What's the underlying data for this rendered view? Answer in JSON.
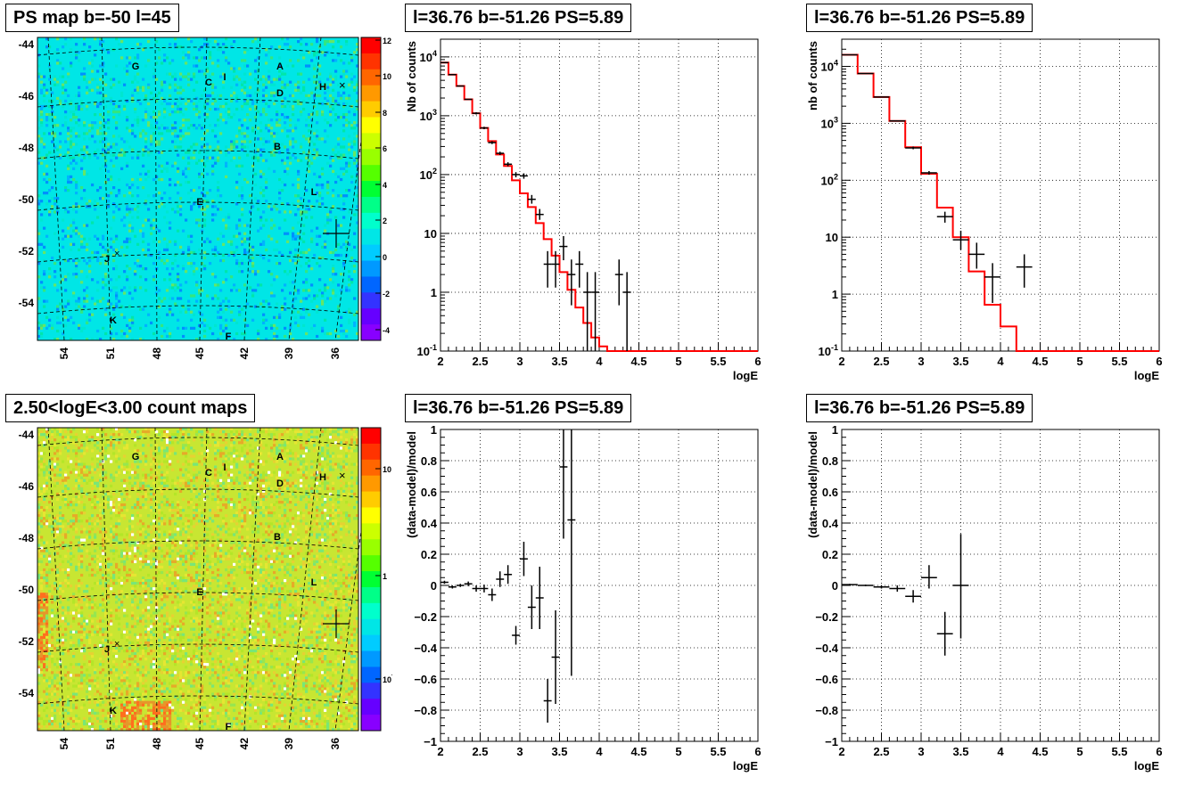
{
  "panels": {
    "map_ps": {
      "title": "PS map b=-50 l=45",
      "colorbar_ticks": [
        "12",
        "10",
        "8",
        "6",
        "4",
        "2",
        "0",
        "-2",
        "-4"
      ]
    },
    "map_counts": {
      "title": "2.50<logE<3.00 count maps",
      "colorbar_ticks": [
        "10",
        "1",
        "10-1"
      ]
    },
    "spec1": {
      "title": "l=36.76 b=-51.26 PS=5.89",
      "ylabel": "Nb of counts",
      "xlabel": "logE"
    },
    "spec2": {
      "title": "l=36.76 b=-51.26 PS=5.89",
      "ylabel": "nb of counts",
      "xlabel": "logE"
    },
    "res1": {
      "title": "l=36.76 b=-51.26 PS=5.89",
      "ylabel": "(data-model)/model",
      "xlabel": "logE"
    },
    "res2": {
      "title": "l=36.76 b=-51.26 PS=5.89",
      "ylabel": "(data-model)/model",
      "xlabel": "logE"
    }
  },
  "map_axes": {
    "lat_ticks": [
      "-44",
      "-46",
      "-48",
      "-50",
      "-52",
      "-54"
    ],
    "lon_ticks": [
      "54",
      "51",
      "48",
      "45",
      "42",
      "39",
      "36"
    ]
  },
  "map_labels": [
    "G",
    "C",
    "I",
    "A",
    "D",
    "H",
    "B",
    "L",
    "E",
    "J",
    "K",
    "F"
  ],
  "colors": {
    "model_line": "#ff0000",
    "data_points": "#000000",
    "grid": "#000000",
    "ps_map_background": "#00e6e6",
    "counts_map_background": "#c8e632"
  },
  "chart_data": [
    {
      "id": "spec1",
      "type": "line",
      "title": "l=36.76 b=-51.26 PS=5.89",
      "xlabel": "logE",
      "ylabel": "Nb of counts",
      "xlim": [
        2,
        6
      ],
      "ylim": [
        0.1,
        20000
      ],
      "yscale": "log",
      "grid": true,
      "x_ticks": [
        "2",
        "2.5",
        "3",
        "3.5",
        "4",
        "4.5",
        "5",
        "5.5",
        "6"
      ],
      "y_ticks": [
        {
          "v": 0.1,
          "t": "10-1"
        },
        {
          "v": 1,
          "t": "1"
        },
        {
          "v": 10,
          "t": "10"
        },
        {
          "v": 100,
          "t": "10^2"
        },
        {
          "v": 1000,
          "t": "10^3"
        },
        {
          "v": 10000,
          "t": "10^4"
        }
      ],
      "model_step": {
        "edges": [
          2.0,
          2.1,
          2.2,
          2.3,
          2.4,
          2.5,
          2.6,
          2.7,
          2.8,
          2.9,
          3.0,
          3.1,
          3.2,
          3.3,
          3.4,
          3.5,
          3.6,
          3.7,
          3.8,
          3.9,
          4.0,
          4.1,
          6.0
        ],
        "values": [
          8000,
          5000,
          3200,
          1900,
          1100,
          620,
          370,
          220,
          140,
          80,
          48,
          28,
          15,
          8,
          4.2,
          2.2,
          1.1,
          0.55,
          0.3,
          0.17,
          0.12,
          0.1
        ]
      },
      "points": [
        {
          "x": 2.05,
          "y": 8000,
          "ylo": 8000,
          "yhi": 8000
        },
        {
          "x": 2.15,
          "y": 5000,
          "ylo": 5000,
          "yhi": 5000
        },
        {
          "x": 2.25,
          "y": 3200,
          "ylo": 3200,
          "yhi": 3200
        },
        {
          "x": 2.35,
          "y": 1900,
          "ylo": 1900,
          "yhi": 1900
        },
        {
          "x": 2.45,
          "y": 1100,
          "ylo": 1050,
          "yhi": 1150
        },
        {
          "x": 2.55,
          "y": 620,
          "ylo": 590,
          "yhi": 650
        },
        {
          "x": 2.65,
          "y": 350,
          "ylo": 330,
          "yhi": 370
        },
        {
          "x": 2.75,
          "y": 230,
          "ylo": 215,
          "yhi": 245
        },
        {
          "x": 2.85,
          "y": 150,
          "ylo": 138,
          "yhi": 162
        },
        {
          "x": 2.95,
          "y": 100,
          "ylo": 90,
          "yhi": 110
        },
        {
          "x": 3.05,
          "y": 95,
          "ylo": 85,
          "yhi": 105
        },
        {
          "x": 3.15,
          "y": 38,
          "ylo": 32,
          "yhi": 45
        },
        {
          "x": 3.25,
          "y": 21,
          "ylo": 17,
          "yhi": 26
        },
        {
          "x": 3.35,
          "y": 3,
          "ylo": 1.2,
          "yhi": 5
        },
        {
          "x": 3.45,
          "y": 3,
          "ylo": 1.2,
          "yhi": 5
        },
        {
          "x": 3.55,
          "y": 6,
          "ylo": 3.5,
          "yhi": 9
        },
        {
          "x": 3.65,
          "y": 2,
          "ylo": 0.6,
          "yhi": 3.6
        },
        {
          "x": 3.75,
          "y": 3,
          "ylo": 1.2,
          "yhi": 5
        },
        {
          "x": 3.85,
          "y": 1,
          "ylo": 0.1,
          "yhi": 2.2
        },
        {
          "x": 3.95,
          "y": 1,
          "ylo": 0.1,
          "yhi": 2.2
        },
        {
          "x": 4.25,
          "y": 2,
          "ylo": 0.6,
          "yhi": 3.6
        },
        {
          "x": 4.35,
          "y": 1,
          "ylo": 0.1,
          "yhi": 2.2
        }
      ],
      "point_halfwidth": 0.05
    },
    {
      "id": "spec2",
      "type": "line",
      "title": "l=36.76 b=-51.26 PS=5.89",
      "xlabel": "logE",
      "ylabel": "nb of counts",
      "xlim": [
        2,
        6
      ],
      "ylim": [
        0.1,
        30000
      ],
      "yscale": "log",
      "grid": true,
      "x_ticks": [
        "2",
        "2.5",
        "3",
        "3.5",
        "4",
        "4.5",
        "5",
        "5.5",
        "6"
      ],
      "y_ticks": [
        {
          "v": 0.1,
          "t": "10-1"
        },
        {
          "v": 1,
          "t": "1"
        },
        {
          "v": 10,
          "t": "10"
        },
        {
          "v": 100,
          "t": "10^2"
        },
        {
          "v": 1000,
          "t": "10^3"
        },
        {
          "v": 10000,
          "t": "10^4"
        }
      ],
      "model_step": {
        "edges": [
          2.0,
          2.2,
          2.4,
          2.6,
          2.8,
          3.0,
          3.2,
          3.4,
          3.6,
          3.8,
          4.0,
          4.2,
          6.0
        ],
        "values": [
          16000,
          7500,
          2900,
          1100,
          380,
          130,
          33,
          10,
          2.5,
          0.65,
          0.27,
          0.1
        ]
      },
      "points": [
        {
          "x": 2.1,
          "y": 16000,
          "ylo": 16000,
          "yhi": 16000
        },
        {
          "x": 2.3,
          "y": 7500,
          "ylo": 7500,
          "yhi": 7500
        },
        {
          "x": 2.5,
          "y": 2900,
          "ylo": 2850,
          "yhi": 2950
        },
        {
          "x": 2.7,
          "y": 1100,
          "ylo": 1070,
          "yhi": 1130
        },
        {
          "x": 2.9,
          "y": 370,
          "ylo": 350,
          "yhi": 390
        },
        {
          "x": 3.1,
          "y": 135,
          "ylo": 125,
          "yhi": 145
        },
        {
          "x": 3.3,
          "y": 23,
          "ylo": 18,
          "yhi": 28
        },
        {
          "x": 3.5,
          "y": 9,
          "ylo": 6,
          "yhi": 13
        },
        {
          "x": 3.7,
          "y": 5,
          "ylo": 2.8,
          "yhi": 8
        },
        {
          "x": 3.9,
          "y": 2,
          "ylo": 0.7,
          "yhi": 3.5
        },
        {
          "x": 4.3,
          "y": 3,
          "ylo": 1.3,
          "yhi": 5
        }
      ],
      "point_halfwidth": 0.1
    },
    {
      "id": "res1",
      "type": "scatter",
      "title": "l=36.76 b=-51.26 PS=5.89",
      "xlabel": "logE",
      "ylabel": "(data-model)/model",
      "xlim": [
        2,
        6
      ],
      "ylim": [
        -1,
        1
      ],
      "grid": true,
      "x_ticks": [
        "2",
        "2.5",
        "3",
        "3.5",
        "4",
        "4.5",
        "5",
        "5.5",
        "6"
      ],
      "y_ticks": [
        {
          "v": -1,
          "t": "−1"
        },
        {
          "v": -0.8,
          "t": "−0.8"
        },
        {
          "v": -0.6,
          "t": "−0.6"
        },
        {
          "v": -0.4,
          "t": "−0.4"
        },
        {
          "v": -0.2,
          "t": "−0.2"
        },
        {
          "v": 0,
          "t": "0"
        },
        {
          "v": 0.2,
          "t": "0.2"
        },
        {
          "v": 0.4,
          "t": "0.4"
        },
        {
          "v": 0.6,
          "t": "0.6"
        },
        {
          "v": 0.8,
          "t": "0.8"
        },
        {
          "v": 1,
          "t": "1"
        }
      ],
      "points": [
        {
          "x": 2.05,
          "y": 0.02,
          "ylo": 0.01,
          "yhi": 0.03
        },
        {
          "x": 2.15,
          "y": -0.01,
          "ylo": -0.02,
          "yhi": 0.0
        },
        {
          "x": 2.25,
          "y": 0.0,
          "ylo": -0.01,
          "yhi": 0.01
        },
        {
          "x": 2.35,
          "y": 0.01,
          "ylo": -0.005,
          "yhi": 0.025
        },
        {
          "x": 2.45,
          "y": -0.02,
          "ylo": -0.04,
          "yhi": 0.0
        },
        {
          "x": 2.55,
          "y": -0.02,
          "ylo": -0.045,
          "yhi": 0.005
        },
        {
          "x": 2.65,
          "y": -0.06,
          "ylo": -0.1,
          "yhi": -0.02
        },
        {
          "x": 2.75,
          "y": 0.04,
          "ylo": -0.01,
          "yhi": 0.09
        },
        {
          "x": 2.85,
          "y": 0.07,
          "ylo": 0.01,
          "yhi": 0.13
        },
        {
          "x": 2.95,
          "y": -0.32,
          "ylo": -0.38,
          "yhi": -0.26
        },
        {
          "x": 3.05,
          "y": 0.17,
          "ylo": 0.06,
          "yhi": 0.28
        },
        {
          "x": 3.15,
          "y": -0.14,
          "ylo": -0.28,
          "yhi": 0.0
        },
        {
          "x": 3.25,
          "y": -0.08,
          "ylo": -0.28,
          "yhi": 0.12
        },
        {
          "x": 3.35,
          "y": -0.74,
          "ylo": -0.88,
          "yhi": -0.6
        },
        {
          "x": 3.45,
          "y": -0.46,
          "ylo": -0.76,
          "yhi": -0.16
        },
        {
          "x": 3.55,
          "y": 0.76,
          "ylo": 0.3,
          "yhi": 1.0
        },
        {
          "x": 3.65,
          "y": 0.42,
          "ylo": -0.58,
          "yhi": 1.0
        }
      ],
      "point_halfwidth": 0.05
    },
    {
      "id": "res2",
      "type": "scatter",
      "title": "l=36.76 b=-51.26 PS=5.89",
      "xlabel": "logE",
      "ylabel": "(data-model)/model",
      "xlim": [
        2,
        6
      ],
      "ylim": [
        -1,
        1
      ],
      "grid": true,
      "x_ticks": [
        "2",
        "2.5",
        "3",
        "3.5",
        "4",
        "4.5",
        "5",
        "5.5",
        "6"
      ],
      "y_ticks": [
        {
          "v": -1,
          "t": "−1"
        },
        {
          "v": -0.8,
          "t": "−0.8"
        },
        {
          "v": -0.6,
          "t": "−0.6"
        },
        {
          "v": -0.4,
          "t": "−0.4"
        },
        {
          "v": -0.2,
          "t": "−0.2"
        },
        {
          "v": 0,
          "t": "0"
        },
        {
          "v": 0.2,
          "t": "0.2"
        },
        {
          "v": 0.4,
          "t": "0.4"
        },
        {
          "v": 0.6,
          "t": "0.6"
        },
        {
          "v": 0.8,
          "t": "0.8"
        },
        {
          "v": 1,
          "t": "1"
        }
      ],
      "points": [
        {
          "x": 2.1,
          "y": 0.005,
          "ylo": 0.0,
          "yhi": 0.01
        },
        {
          "x": 2.3,
          "y": 0.0,
          "ylo": -0.005,
          "yhi": 0.005
        },
        {
          "x": 2.5,
          "y": -0.01,
          "ylo": -0.02,
          "yhi": 0.0
        },
        {
          "x": 2.7,
          "y": -0.02,
          "ylo": -0.04,
          "yhi": 0.0
        },
        {
          "x": 2.9,
          "y": -0.07,
          "ylo": -0.11,
          "yhi": -0.03
        },
        {
          "x": 3.1,
          "y": 0.05,
          "ylo": -0.02,
          "yhi": 0.13
        },
        {
          "x": 3.3,
          "y": -0.31,
          "ylo": -0.45,
          "yhi": -0.17
        },
        {
          "x": 3.5,
          "y": 0.0,
          "ylo": -0.34,
          "yhi": 0.33
        }
      ],
      "point_halfwidth": 0.1
    }
  ]
}
